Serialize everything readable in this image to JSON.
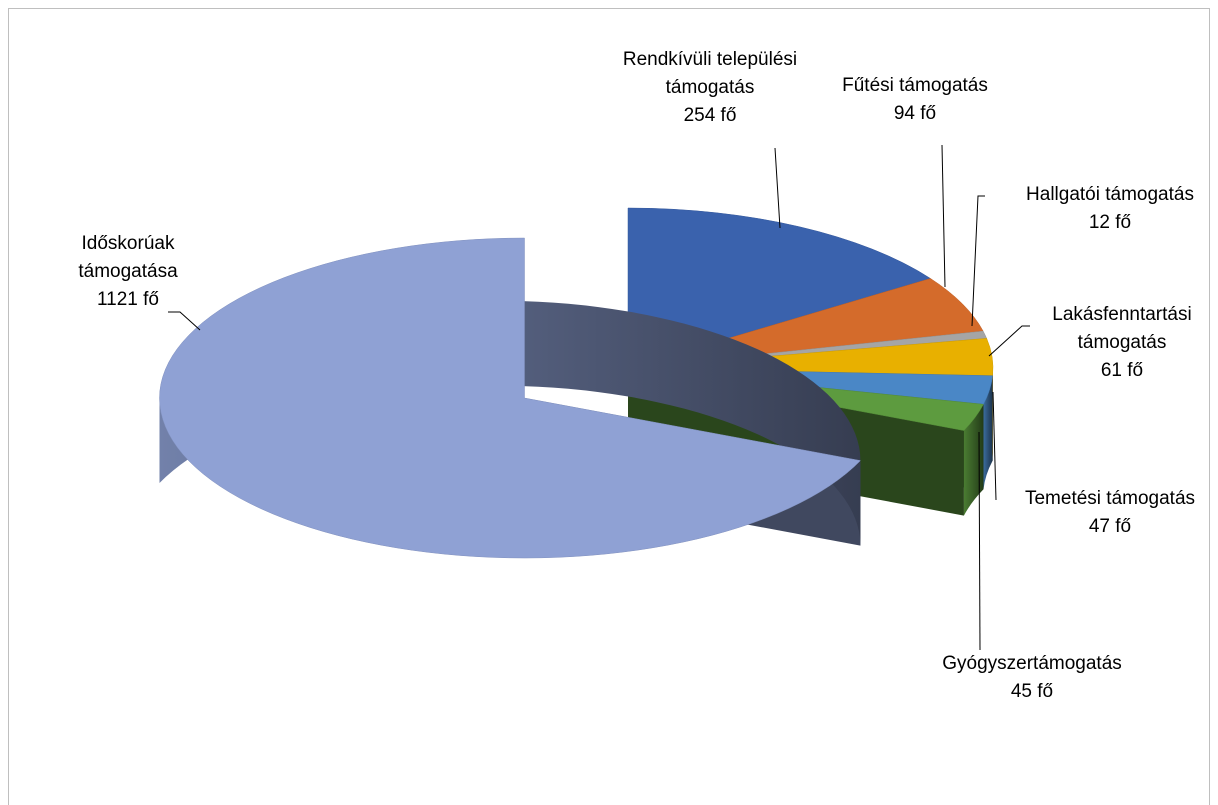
{
  "chart_data": {
    "type": "pie3d",
    "categories": [
      "Rendkívüli települési támogatás",
      "Fűtési támogatás",
      "Hallgatói támogatás",
      "Lakásfenntartási támogatás",
      "Temetési támogatás",
      "Gyógyszertámogatás",
      "Időskorúak támogatása"
    ],
    "values": [
      254,
      94,
      12,
      61,
      47,
      45,
      1121
    ],
    "value_labels": [
      "254 fő",
      "94 fő",
      "12 fő",
      "61 fő",
      "47 fő",
      "45 fő",
      "1121 fő"
    ],
    "colors": [
      "#3a62ad",
      "#d46b2b",
      "#a5a5a5",
      "#e8b000",
      "#4a87c6",
      "#5d9b3f",
      "#8fa1d4"
    ],
    "exploded": [
      6
    ]
  }
}
